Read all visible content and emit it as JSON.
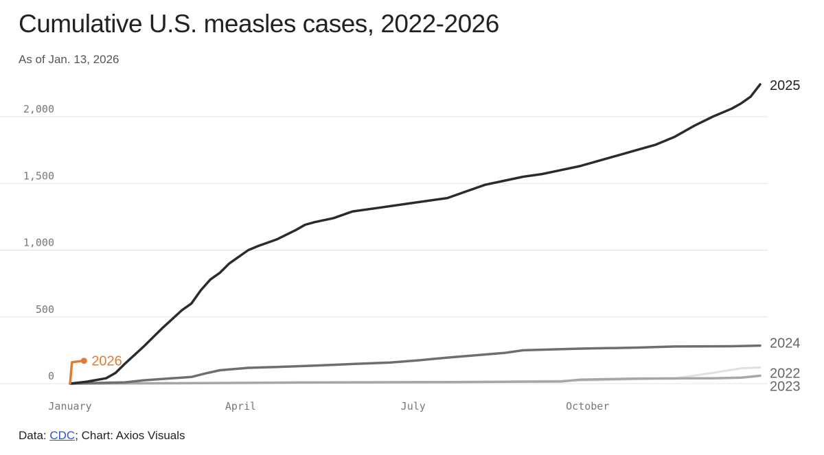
{
  "header": {
    "title": "Cumulative U.S. measles cases, 2022-2026",
    "subtitle": "As of Jan. 13, 2026"
  },
  "footer": {
    "data_prefix": "Data: ",
    "source_link": "CDC",
    "suffix": "; Chart: Axios Visuals"
  },
  "colors": {
    "2025": "#2b2b2b",
    "2024": "#6e6e6e",
    "2023": "#a6a6a6",
    "2022": "#e0e0e0",
    "2026": "#e07b30",
    "grid": "#e3e3e3",
    "link": "#2a55c8"
  },
  "chart_data": {
    "type": "line",
    "x_unit": "day of year",
    "xlim": [
      1,
      365
    ],
    "ylim": [
      0,
      2300
    ],
    "grid": "horizontal",
    "x_ticks": [
      {
        "x": 1,
        "label": "January"
      },
      {
        "x": 91,
        "label": "April"
      },
      {
        "x": 182,
        "label": "July"
      },
      {
        "x": 274,
        "label": "October"
      }
    ],
    "y_ticks": [
      {
        "y": 0,
        "label": "0"
      },
      {
        "y": 500,
        "label": "500"
      },
      {
        "y": 1000,
        "label": "1,000"
      },
      {
        "y": 1500,
        "label": "1,500"
      },
      {
        "y": 2000,
        "label": "2,000"
      }
    ],
    "series": [
      {
        "name": "2022",
        "x": [
          1,
          60,
          120,
          200,
          280,
          320,
          340,
          355,
          365
        ],
        "y": [
          0,
          2,
          5,
          10,
          25,
          40,
          80,
          115,
          121
        ]
      },
      {
        "name": "2023",
        "x": [
          1,
          60,
          120,
          200,
          260,
          270,
          300,
          340,
          355,
          365
        ],
        "y": [
          0,
          3,
          8,
          12,
          16,
          30,
          38,
          40,
          45,
          59
        ]
      },
      {
        "name": "2024",
        "x": [
          1,
          30,
          40,
          60,
          65,
          72,
          80,
          95,
          110,
          130,
          150,
          170,
          185,
          200,
          230,
          240,
          270,
          300,
          320,
          350,
          365
        ],
        "y": [
          0,
          10,
          25,
          45,
          50,
          75,
          100,
          118,
          125,
          135,
          147,
          158,
          175,
          195,
          230,
          250,
          262,
          270,
          278,
          280,
          285
        ]
      },
      {
        "name": "2025",
        "x": [
          1,
          10,
          20,
          25,
          30,
          40,
          50,
          60,
          65,
          70,
          75,
          80,
          85,
          90,
          95,
          100,
          110,
          120,
          125,
          130,
          140,
          150,
          165,
          180,
          200,
          210,
          220,
          230,
          240,
          250,
          260,
          270,
          280,
          290,
          300,
          310,
          320,
          330,
          340,
          350,
          355,
          360,
          365
        ],
        "y": [
          0,
          15,
          40,
          80,
          150,
          280,
          420,
          550,
          600,
          700,
          780,
          830,
          900,
          950,
          1000,
          1030,
          1080,
          1150,
          1190,
          1210,
          1240,
          1290,
          1320,
          1350,
          1390,
          1440,
          1490,
          1520,
          1550,
          1570,
          1600,
          1630,
          1670,
          1710,
          1750,
          1790,
          1850,
          1930,
          2000,
          2060,
          2100,
          2150,
          2242
        ]
      },
      {
        "name": "2026",
        "x": [
          1,
          2,
          8
        ],
        "y": [
          0,
          160,
          171
        ]
      }
    ],
    "title": "Cumulative U.S. measles cases, 2022-2026",
    "subtitle": "As of Jan. 13, 2026"
  }
}
